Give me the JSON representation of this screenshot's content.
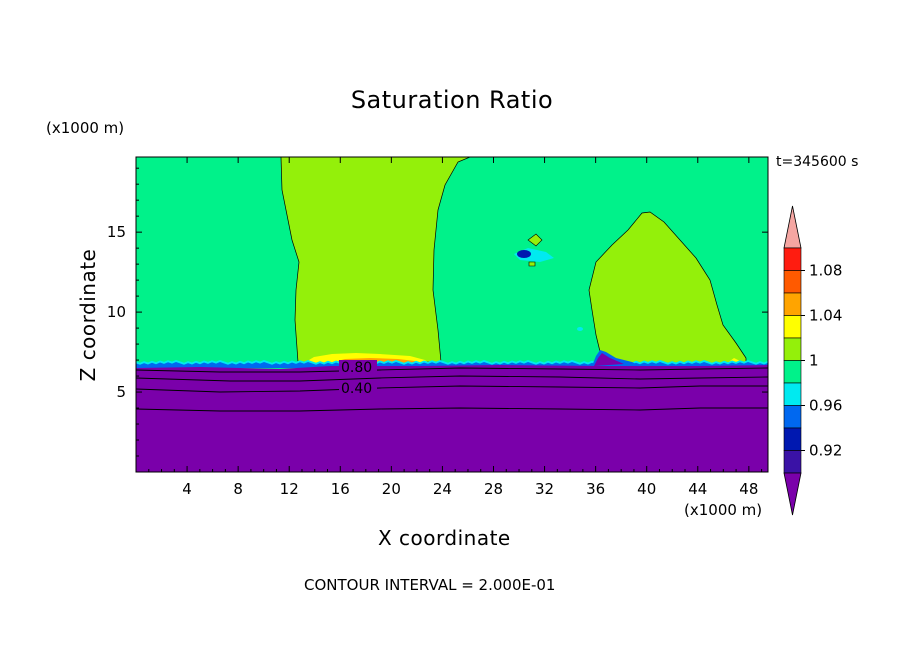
{
  "chart_data": {
    "type": "heatmap",
    "title": "Saturation Ratio",
    "xlabel": "X coordinate",
    "ylabel": "Z coordinate",
    "x_unit": "(x1000 m)",
    "y_unit": "(x1000 m)",
    "timestamp": "t=345600 s",
    "footnote": "CONTOUR INTERVAL = 2.000E-01",
    "xlim": [
      0,
      49.5
    ],
    "ylim": [
      0,
      19.7
    ],
    "x_ticks": [
      4,
      8,
      12,
      16,
      20,
      24,
      28,
      32,
      36,
      40,
      44,
      48
    ],
    "x_tick_labels": [
      "4",
      "8",
      "12",
      "16",
      "20",
      "24",
      "28",
      "32",
      "36",
      "40",
      "44",
      "48"
    ],
    "y_ticks": [
      5,
      10,
      15
    ],
    "y_tick_labels": [
      "5",
      "10",
      "15"
    ],
    "colorbar": {
      "levels": [
        0.9,
        0.92,
        0.94,
        0.96,
        0.98,
        1.0,
        1.02,
        1.04,
        1.06,
        1.08,
        1.1
      ],
      "colors": [
        "#7a00aa",
        "#3a12a6",
        "#0018b0",
        "#0068f0",
        "#00eaf0",
        "#00f28a",
        "#94f00a",
        "#ffff00",
        "#ffa400",
        "#ff5a00",
        "#ff1c10",
        "#f5a6a2"
      ],
      "labels": [
        "0.92",
        "0.96",
        "1",
        "1.04",
        "1.08"
      ]
    },
    "contour_labels": [
      "0.80",
      "0.40"
    ],
    "regions": [
      {
        "name": "subsaturated lower layer",
        "value": 0.9,
        "z_top": 6.8
      },
      {
        "name": "upper background",
        "value": 0.99,
        "z_range": [
          6.8,
          19.7
        ]
      },
      {
        "name": "moist column",
        "value": 1.01,
        "x_range": [
          11.5,
          24.5
        ],
        "z_range": [
          6.8,
          19.7
        ]
      },
      {
        "name": "moist dome",
        "value": 1.01,
        "x_range": [
          35.5,
          47.5
        ],
        "z_top": 16.4
      },
      {
        "name": "moist patch",
        "value": 1.01,
        "x": 31,
        "z": 14.6
      },
      {
        "name": "dry spot",
        "value": 0.93,
        "x": 30,
        "z": 13.7
      }
    ]
  }
}
